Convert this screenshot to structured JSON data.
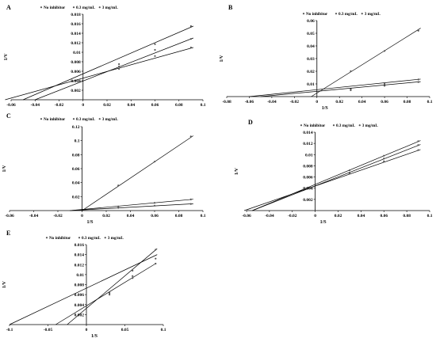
{
  "chart_data": [
    {
      "panel": "A",
      "type": "line",
      "legend": [
        "No inhibitor",
        "0.3 mg/mL",
        "3 mg/mL"
      ],
      "xlabel": "",
      "ylabel": "1/V",
      "xlim": [
        -0.06,
        0.1
      ],
      "ylim": [
        0,
        0.018
      ],
      "xticks": [
        "-0.06",
        "-0.04",
        "-0.02",
        "0",
        "0.02",
        "0.04",
        "0.06",
        "0.08",
        "0.1"
      ],
      "yticks": [
        "0.002",
        "0.004",
        "0.006",
        "0.008",
        "0.01",
        "0.012",
        "0.014",
        "0.016",
        "0.018"
      ],
      "x": [
        0.03,
        0.06,
        0.09
      ],
      "series": [
        {
          "name": "No inhibitor",
          "values": [
            0.0075,
            0.0117,
            0.0155
          ],
          "line": [
            [
              -0.05,
              0
            ],
            [
              0.092,
              0.0155
            ]
          ]
        },
        {
          "name": "0.3 mg/mL",
          "values": [
            0.007,
            0.0105,
            0.0128
          ],
          "line": [
            [
              -0.04,
              0
            ],
            [
              0.092,
              0.013
            ]
          ]
        },
        {
          "name": "3 mg/mL",
          "values": [
            0.0065,
            0.0092,
            0.011
          ],
          "line": [
            [
              -0.065,
              0
            ],
            [
              0.092,
              0.011
            ]
          ]
        }
      ]
    },
    {
      "panel": "B",
      "type": "line",
      "legend": [
        "No inhibitor",
        "0.3 mg/mL",
        "3 mg/mL"
      ],
      "xlabel": "1/S",
      "ylabel": "1/V",
      "xlim": [
        -0.08,
        0.1
      ],
      "ylim": [
        0,
        0.06
      ],
      "xticks": [
        "-0.08",
        "-0.06",
        "-0.04",
        "-0.02",
        "0",
        "0.02",
        "0.04",
        "0.06",
        "0.08",
        "0.1"
      ],
      "yticks": [
        "0.01",
        "0.02",
        "0.03",
        "0.04",
        "0.05",
        "0.06"
      ],
      "x": [
        0.03,
        0.06,
        0.09
      ],
      "series": [
        {
          "name": "No inhibitor",
          "values": [
            0.006,
            0.01,
            0.0135
          ],
          "line": [
            [
              -0.06,
              0
            ],
            [
              0.092,
              0.0138
            ]
          ]
        },
        {
          "name": "0.3 mg/mL",
          "values": [
            0.005,
            0.0085,
            0.0115
          ],
          "line": [
            [
              -0.05,
              0
            ],
            [
              0.092,
              0.0118
            ]
          ]
        },
        {
          "name": "3 mg/mL",
          "values": [
            0.02,
            0.036,
            0.052
          ],
          "line": [
            [
              -0.005,
              0
            ],
            [
              0.092,
              0.054
            ]
          ]
        }
      ]
    },
    {
      "panel": "C",
      "type": "line",
      "legend": [
        "No inhibitor",
        "0.3 mg/mL",
        "3 mg/mL"
      ],
      "xlabel": "1/S",
      "ylabel": "1/V",
      "xlim": [
        -0.06,
        0.1
      ],
      "ylim": [
        0,
        0.12
      ],
      "xticks": [
        "-0.06",
        "-0.04",
        "-0.02",
        "0",
        "0.02",
        "0.04",
        "0.06",
        "0.08",
        "0.1"
      ],
      "yticks": [
        "0.02",
        "0.04",
        "0.06",
        "0.08",
        "0.1",
        "0.12"
      ],
      "x": [
        0.03,
        0.06,
        0.09
      ],
      "series": [
        {
          "name": "No inhibitor",
          "values": [
            0.006,
            0.011,
            0.016
          ],
          "line": [
            [
              -0.01,
              0
            ],
            [
              0.092,
              0.0162
            ]
          ]
        },
        {
          "name": "0.3 mg/mL",
          "values": [
            0.004,
            0.007,
            0.0095
          ],
          "line": [
            [
              -0.01,
              0
            ],
            [
              0.092,
              0.0098
            ]
          ]
        },
        {
          "name": "3 mg/mL",
          "values": [
            0.036,
            0.07,
            0.106
          ],
          "line": [
            [
              0,
              0
            ],
            [
              0.092,
              0.107
            ]
          ]
        }
      ]
    },
    {
      "panel": "D",
      "type": "line",
      "legend": [
        "No inhibitor",
        "0.3 mg/mL",
        "3 mg/mL"
      ],
      "xlabel": "1/S",
      "ylabel": "1/V",
      "xlim": [
        -0.06,
        0.1
      ],
      "ylim": [
        0,
        0.014
      ],
      "xticks": [
        "-0.06",
        "-0.04",
        "-0.02",
        "0",
        "0.02",
        "0.04",
        "0.06",
        "0.08",
        "0.1"
      ],
      "yticks": [
        "0.002",
        "0.004",
        "0.006",
        "0.008",
        "0.01",
        "0.012",
        "0.014"
      ],
      "x": [
        0.03,
        0.06,
        0.09
      ],
      "series": [
        {
          "name": "No inhibitor",
          "values": [
            0.0072,
            0.0098,
            0.0124
          ],
          "line": [
            [
              -0.055,
              0
            ],
            [
              0.092,
              0.0125
            ]
          ]
        },
        {
          "name": "0.3 mg/mL",
          "values": [
            0.0068,
            0.0093,
            0.0117
          ],
          "line": [
            [
              -0.055,
              0
            ],
            [
              0.092,
              0.0118
            ]
          ]
        },
        {
          "name": "3 mg/mL",
          "values": [
            0.0066,
            0.0088,
            0.0108
          ],
          "line": [
            [
              -0.062,
              0
            ],
            [
              0.092,
              0.0109
            ]
          ]
        }
      ]
    },
    {
      "panel": "E",
      "type": "line",
      "legend": [
        "No inhibitor",
        "0.3 mg/mL",
        "3 mg/mL"
      ],
      "xlabel": "1/S",
      "ylabel": "1/V",
      "xlim": [
        -0.1,
        0.1
      ],
      "ylim": [
        0,
        0.016
      ],
      "xticks": [
        "-0.1",
        "-0.05",
        "0",
        "0.05",
        "0.1"
      ],
      "yticks": [
        "0.002",
        "0.004",
        "0.006",
        "0.008",
        "0.01",
        "0.012",
        "0.014",
        "0.016"
      ],
      "x": [
        0.03,
        0.06,
        0.09
      ],
      "series": [
        {
          "name": "No inhibitor",
          "values": [
            0.006,
            0.0093,
            0.0122
          ],
          "line": [
            [
              -0.04,
              0
            ],
            [
              0.09,
              0.0122
            ]
          ]
        },
        {
          "name": "0.3 mg/mL",
          "values": [
            0.0065,
            0.0108,
            0.015
          ],
          "line": [
            [
              -0.025,
              0
            ],
            [
              0.092,
              0.0152
            ]
          ]
        },
        {
          "name": "3 mg/mL",
          "values": [
            0.0063,
            0.0097,
            0.0132
          ],
          "line": [
            [
              -0.1,
              0
            ],
            [
              0.092,
              0.014
            ]
          ]
        }
      ]
    }
  ]
}
